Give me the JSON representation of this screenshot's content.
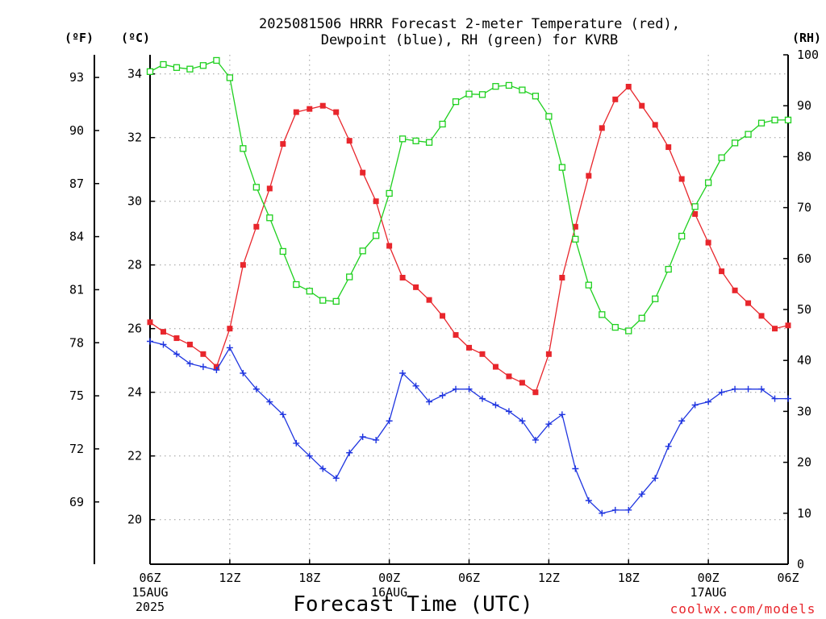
{
  "title": {
    "line1": "2025081506 HRRR Forecast 2-meter Temperature (red),",
    "line2": "Dewpoint (blue), RH (green) for KVRB"
  },
  "units": {
    "f": "(ºF)",
    "c": "(ºC)",
    "rh": "(RH)"
  },
  "xlabel": "Forecast Time (UTC)",
  "credit": "coolwx.com/models",
  "colors": {
    "temperature": "#e8262c",
    "dewpoint": "#1f35e0",
    "rh": "#1fd01f"
  },
  "chart_data": {
    "type": "line",
    "title": "2025081506 HRRR Forecast 2-meter Temperature (red), Dewpoint (blue), RH (green) for KVRB",
    "xlabel": "Forecast Time (UTC)",
    "x_hours": [
      0,
      1,
      2,
      3,
      4,
      5,
      6,
      7,
      8,
      9,
      10,
      11,
      12,
      13,
      14,
      15,
      16,
      17,
      18,
      19,
      20,
      21,
      22,
      23,
      24,
      25,
      26,
      27,
      28,
      29,
      30,
      31,
      32,
      33,
      34,
      35,
      36,
      37,
      38,
      39,
      40,
      41,
      42,
      43,
      44,
      45,
      46,
      47,
      48
    ],
    "x_ticks": [
      {
        "hour": 0,
        "lines": [
          "06Z",
          "15AUG",
          "2025"
        ]
      },
      {
        "hour": 6,
        "lines": [
          "12Z"
        ]
      },
      {
        "hour": 12,
        "lines": [
          "18Z"
        ]
      },
      {
        "hour": 18,
        "lines": [
          "00Z",
          "16AUG"
        ]
      },
      {
        "hour": 24,
        "lines": [
          "06Z"
        ]
      },
      {
        "hour": 30,
        "lines": [
          "12Z"
        ]
      },
      {
        "hour": 36,
        "lines": [
          "18Z"
        ]
      },
      {
        "hour": 42,
        "lines": [
          "00Z",
          "17AUG"
        ]
      },
      {
        "hour": 48,
        "lines": [
          "06Z"
        ]
      }
    ],
    "left_axis_c": {
      "label": "(ºC)",
      "ylim": [
        18.6,
        34.6
      ],
      "ticks": [
        20,
        22,
        24,
        26,
        28,
        30,
        32,
        34
      ]
    },
    "left_axis_f": {
      "label": "(ºF)",
      "ticks": [
        69,
        72,
        75,
        78,
        81,
        84,
        87,
        90,
        93
      ]
    },
    "right_axis_rh": {
      "label": "(RH)",
      "ylim": [
        0,
        100
      ],
      "ticks": [
        0,
        10,
        20,
        30,
        40,
        50,
        60,
        70,
        80,
        90,
        100
      ]
    },
    "series": [
      {
        "name": "Temperature",
        "axis": "c",
        "marker": "filled-square",
        "values": [
          26.2,
          25.9,
          25.7,
          25.5,
          25.2,
          24.8,
          26.0,
          28.0,
          29.2,
          30.4,
          31.8,
          32.8,
          32.9,
          33.0,
          32.8,
          31.9,
          30.9,
          30.0,
          28.6,
          27.6,
          27.3,
          26.9,
          26.4,
          25.8,
          25.4,
          25.2,
          24.8,
          24.5,
          24.3,
          24.0,
          25.2,
          27.6,
          29.2,
          30.8,
          32.3,
          33.2,
          33.6,
          33.0,
          32.4,
          31.7,
          30.7,
          29.6,
          28.7,
          27.8,
          27.2,
          26.8,
          26.4,
          26.0,
          26.1
        ]
      },
      {
        "name": "Dewpoint",
        "axis": "c",
        "marker": "plus",
        "values": [
          25.6,
          25.5,
          25.2,
          24.9,
          24.8,
          24.7,
          25.4,
          24.6,
          24.1,
          23.7,
          23.3,
          22.4,
          22.0,
          21.6,
          21.3,
          22.1,
          22.6,
          22.5,
          23.1,
          24.6,
          24.2,
          23.7,
          23.9,
          24.1,
          24.1,
          23.8,
          23.6,
          23.4,
          23.1,
          22.5,
          23.0,
          23.3,
          21.6,
          20.6,
          20.2,
          20.3,
          20.3,
          20.8,
          21.3,
          22.3,
          23.1,
          23.6,
          23.7,
          24.0,
          24.1,
          24.1,
          24.1,
          23.8,
          23.8
        ]
      },
      {
        "name": "RH",
        "axis": "rh",
        "marker": "open-square",
        "values": [
          96.7,
          98.1,
          97.5,
          97.2,
          97.9,
          98.9,
          95.5,
          81.6,
          74.0,
          68.0,
          61.4,
          54.9,
          53.6,
          51.8,
          51.6,
          56.4,
          61.5,
          64.5,
          72.8,
          83.5,
          83.1,
          82.8,
          86.4,
          90.8,
          92.3,
          92.2,
          93.8,
          94.0,
          93.1,
          91.9,
          87.9,
          77.9,
          63.8,
          54.8,
          49.0,
          46.5,
          45.8,
          48.3,
          52.1,
          57.9,
          64.4,
          70.2,
          74.9,
          79.8,
          82.7,
          84.4,
          86.6,
          87.2,
          87.2
        ]
      }
    ]
  }
}
